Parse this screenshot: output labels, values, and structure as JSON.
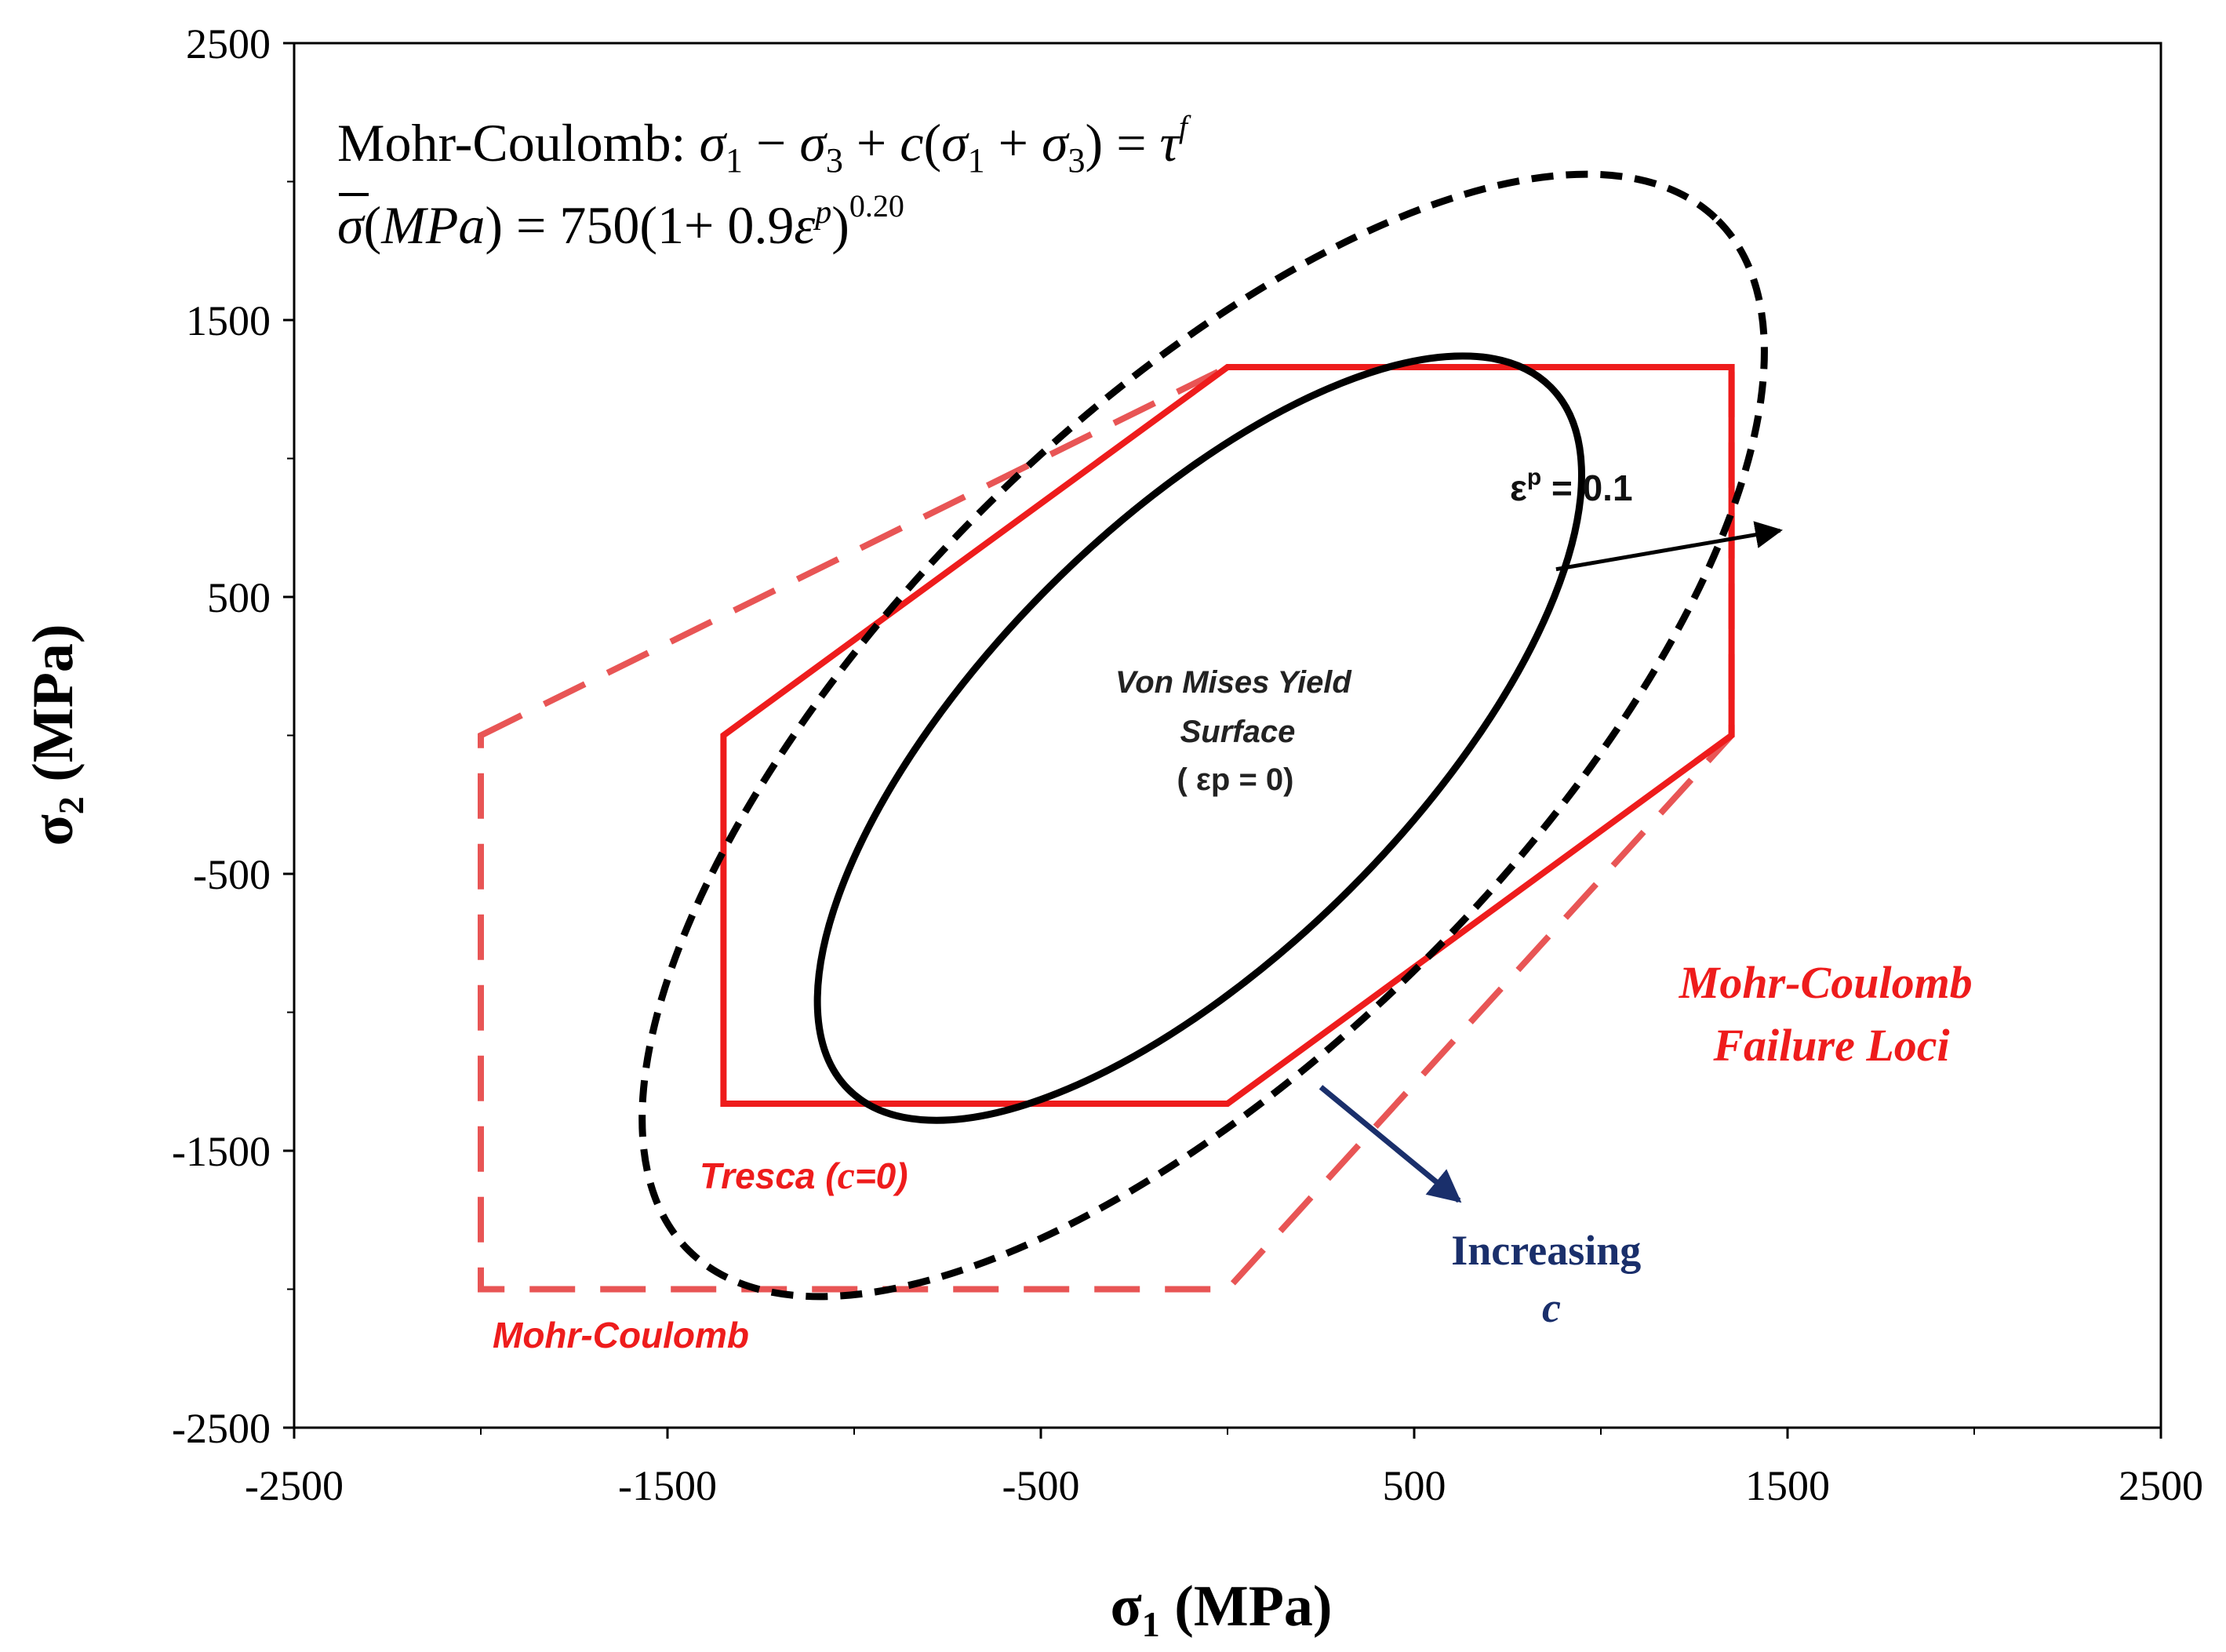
{
  "chart_data": {
    "type": "line",
    "title": "",
    "xlabel": "σ1 (MPa)",
    "ylabel": "σ2 (MPa)",
    "xlabel_parts": {
      "symbol": "σ",
      "sub": "1",
      "unit": " (MPa)"
    },
    "ylabel_parts": {
      "symbol": "σ",
      "sub": "2",
      "unit": " (MPa)"
    },
    "xlim": [
      -2500,
      2500
    ],
    "ylim": [
      -2500,
      2500
    ],
    "major_ticks": [
      -2500,
      -1500,
      -500,
      500,
      1500,
      2500
    ],
    "minor_ticks": [
      -2000,
      -1000,
      0,
      1000,
      2000
    ],
    "tick_labels": [
      "-2500",
      "-1500",
      "-500",
      "500",
      "1500",
      "2500"
    ],
    "grid": false,
    "equations": {
      "line1": {
        "prefix": "Mohr-Coulomb:  ",
        "parts": [
          "σ",
          "1",
          " − ",
          "σ",
          "3",
          " + ",
          "c",
          "(",
          "σ",
          "1",
          " + ",
          "σ",
          "3",
          ") = ",
          "τ",
          "f"
        ]
      },
      "line2": {
        "parts": [
          "σ",
          "(",
          "MPa",
          ") = 750(1+ 0.9",
          "ε",
          "p",
          ")",
          "0.20"
        ]
      }
    },
    "series": [
      {
        "name": "Tresca (c=0)",
        "style": "solid",
        "color": "#ee1c1c",
        "points": [
          [
            -1350,
            0
          ],
          [
            0,
            1330
          ],
          [
            1350,
            1330
          ],
          [
            1350,
            0
          ],
          [
            0,
            -1330
          ],
          [
            -1350,
            -1330
          ],
          [
            -1350,
            0
          ]
        ]
      },
      {
        "name": "Mohr-Coulomb",
        "style": "dashed",
        "color": "#e85555",
        "points": [
          [
            -2000,
            0
          ],
          [
            0,
            1330
          ],
          [
            1350,
            1330
          ],
          [
            1350,
            0
          ],
          [
            0,
            -2000
          ],
          [
            -2000,
            -2000
          ],
          [
            -2000,
            0
          ]
        ]
      },
      {
        "name": "Von Mises Yield Surface (εp = 0)",
        "style": "solid",
        "color": "#000000",
        "ellipse": {
          "cx": 0,
          "cy": 0,
          "a": 1330,
          "b": 770,
          "angle_deg": 45,
          "x_shift": -75,
          "y_shift": -10
        }
      },
      {
        "name": "εp = 0.1",
        "style": "dashed",
        "color": "#000000",
        "ellipse": {
          "cx": 0,
          "cy": 0,
          "a": 1950,
          "b": 1140,
          "angle_deg": 45,
          "x_shift": -65,
          "y_shift": 0
        }
      }
    ],
    "annotations": {
      "von_mises": {
        "line1": "Von Mises Yield",
        "line2": "Surface",
        "line3": "( εp = 0)"
      },
      "ep": {
        "text": "εp = 0.1",
        "symbol": "ε",
        "sup": "p",
        "rest": " = 0.1"
      },
      "mc_loci": {
        "line1": "Mohr-Coulomb",
        "line2": "Failure Loci"
      },
      "tresca": {
        "text": "Tresca (c=0)",
        "prefix": "Tresca (",
        "c": "c",
        "suffix": "=0)"
      },
      "mc_label": "Mohr-Coulomb",
      "increasing": {
        "line1": "Increasing",
        "line2": "c"
      }
    },
    "arrows": {
      "ep": {
        "from": [
          880,
          600
        ],
        "to": [
          1480,
          740
        ]
      },
      "increasing": {
        "from": [
          250,
          -1270
        ],
        "to": [
          620,
          -1680
        ]
      }
    }
  }
}
